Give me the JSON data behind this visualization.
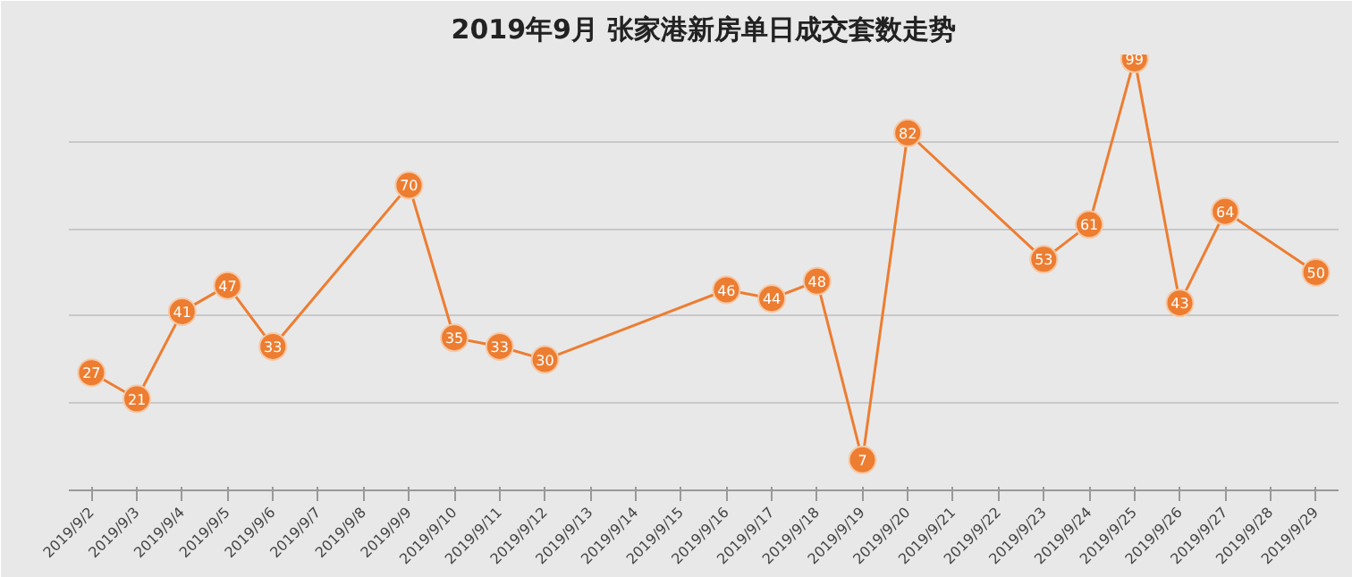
{
  "chart_data": {
    "type": "line",
    "title": "2019年9月 张家港新房单日成交套数走势",
    "categories": [
      "2019/9/2",
      "2019/9/3",
      "2019/9/4",
      "2019/9/5",
      "2019/9/6",
      "2019/9/7",
      "2019/9/8",
      "2019/9/9",
      "2019/9/10",
      "2019/9/11",
      "2019/9/12",
      "2019/9/13",
      "2019/9/14",
      "2019/9/15",
      "2019/9/16",
      "2019/9/17",
      "2019/9/18",
      "2019/9/19",
      "2019/9/20",
      "2019/9/21",
      "2019/9/22",
      "2019/9/23",
      "2019/9/24",
      "2019/9/25",
      "2019/9/26",
      "2019/9/27",
      "2019/9/28",
      "2019/9/29"
    ],
    "series": [
      {
        "color": "#ed7d31",
        "values": [
          27,
          21,
          41,
          47,
          33,
          null,
          null,
          70,
          35,
          33,
          30,
          null,
          null,
          null,
          46,
          44,
          48,
          7,
          82,
          null,
          null,
          53,
          61,
          99,
          43,
          64,
          null,
          50
        ]
      }
    ],
    "ylim": [
      0,
      100
    ],
    "yticks": [
      {
        "value": 0,
        "label": null
      },
      {
        "value": 20,
        "label": null
      },
      {
        "value": 40,
        "label": null
      },
      {
        "value": 60,
        "label": null
      },
      {
        "value": 80,
        "label": null
      },
      {
        "value": 100,
        "label": null
      }
    ],
    "tick_labels": "x",
    "grid": "y",
    "data_labels": true,
    "marker": "circle",
    "line_style": "solid"
  }
}
